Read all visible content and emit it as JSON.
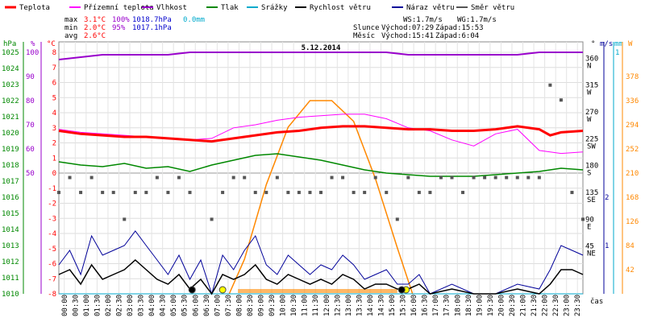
{
  "legend": [
    {
      "label": "Teplota",
      "color": "#ff0000"
    },
    {
      "label": "Přízemní teplota",
      "color": "#ff00ff"
    },
    {
      "label": "Vlhkost",
      "color": "#9900cc"
    },
    {
      "label": "Tlak",
      "color": "#008800"
    },
    {
      "label": "Srážky",
      "color": "#00aacc"
    },
    {
      "label": "Rychlost větru",
      "color": "#000000"
    },
    {
      "label": "Náraz větru",
      "color": "#000099"
    },
    {
      "label": "Směr větru",
      "color": "#555555"
    }
  ],
  "stats": {
    "rows": [
      {
        "name": "max",
        "temp": "3.1°C",
        "hum": "100%",
        "press": "1018.7hPa",
        "rain": "0.0mm"
      },
      {
        "name": "min",
        "temp": "2.0°C",
        "hum": "95%",
        "press": "1017.1hPa",
        "rain": ""
      },
      {
        "name": "avg",
        "temp": "2.6°C",
        "hum": "",
        "press": "",
        "rain": ""
      }
    ],
    "ws": "WS:1.7m/s",
    "wg": "WG:1.7m/s",
    "sun_label": "Slunce",
    "sun_rise": "Východ:07:29",
    "sun_set": "Západ:15:53",
    "moon_label": "Měsíc",
    "moon_rise": "Východ:15:41",
    "moon_set": "Západ:6:04",
    "colors": {
      "temp": "#ff0000",
      "hum": "#9900cc",
      "press": "#0000cc",
      "rain": "#00aacc"
    }
  },
  "chart_data": {
    "type": "line",
    "title": "5.12.2014",
    "x_label": "čas",
    "x_ticks": [
      "00:00",
      "00:30",
      "01:00",
      "01:30",
      "02:00",
      "02:30",
      "03:00",
      "03:30",
      "04:00",
      "04:30",
      "05:00",
      "05:30",
      "06:00",
      "06:30",
      "07:00",
      "07:30",
      "08:00",
      "08:30",
      "09:00",
      "09:30",
      "10:00",
      "10:30",
      "11:00",
      "11:30",
      "12:00",
      "12:30",
      "13:00",
      "13:30",
      "14:00",
      "14:30",
      "15:00",
      "15:30",
      "16:00",
      "16:30",
      "17:00",
      "17:30",
      "18:00",
      "18:30",
      "19:00",
      "19:30",
      "20:00",
      "20:30",
      "21:00",
      "21:30",
      "22:00",
      "22:30",
      "23:00",
      "23:30"
    ],
    "axes": {
      "hpa": {
        "label": "hPa",
        "ticks": [
          "1025",
          "1024",
          "1023",
          "1022",
          "1021",
          "1020",
          "1019",
          "1018",
          "1017",
          "1016",
          "1015",
          "1014",
          "1013",
          "1012",
          "1011",
          "1010"
        ],
        "color": "#008800"
      },
      "pct": {
        "label": "%",
        "ticks": [
          "100",
          "90",
          "80",
          "70",
          "60",
          "50"
        ],
        "color": "#9900cc"
      },
      "celsius": {
        "label": "°C",
        "ticks": [
          "8",
          "7",
          "6",
          "5",
          "4",
          "3",
          "2",
          "1",
          "0",
          "-1",
          "-2",
          "-3",
          "-4",
          "-5",
          "-6",
          "-7",
          "-8"
        ],
        "range": [
          -8,
          8
        ],
        "color": "#ff0000"
      },
      "wind_dir": {
        "label": "°",
        "ticks": [
          "360",
          "315",
          "270",
          "225",
          "180",
          "135",
          "90",
          "45"
        ],
        "compass": [
          "N",
          "W",
          "W",
          "SW",
          "S",
          "SE",
          "E",
          "NE"
        ]
      },
      "ms": {
        "label": "m/s",
        "ticks": [
          "2",
          "1"
        ],
        "color": "#000099"
      },
      "mm": {
        "label": "mm",
        "ticks": [
          "1"
        ],
        "color": "#00aacc"
      },
      "wm2": {
        "label": "W",
        "ticks": [
          "378",
          "336",
          "294",
          "252",
          "210",
          "168",
          "126",
          "84",
          "42"
        ],
        "color": "#ff8800"
      }
    },
    "series": {
      "temperature_c": [
        [
          0,
          2.8
        ],
        [
          1,
          2.6
        ],
        [
          2,
          2.5
        ],
        [
          3,
          2.4
        ],
        [
          4,
          2.4
        ],
        [
          5,
          2.3
        ],
        [
          6,
          2.2
        ],
        [
          7,
          2.1
        ],
        [
          8,
          2.3
        ],
        [
          9,
          2.5
        ],
        [
          10,
          2.7
        ],
        [
          11,
          2.8
        ],
        [
          12,
          3.0
        ],
        [
          13,
          3.1
        ],
        [
          14,
          3.1
        ],
        [
          15,
          3.0
        ],
        [
          16,
          2.9
        ],
        [
          17,
          2.9
        ],
        [
          18,
          2.8
        ],
        [
          19,
          2.8
        ],
        [
          20,
          2.9
        ],
        [
          21,
          3.1
        ],
        [
          22,
          2.9
        ],
        [
          22.5,
          2.5
        ],
        [
          23,
          2.7
        ],
        [
          24,
          2.8
        ]
      ],
      "ground_temp_c": [
        [
          0,
          2.9
        ],
        [
          1,
          2.7
        ],
        [
          2,
          2.6
        ],
        [
          3,
          2.5
        ],
        [
          4,
          2.4
        ],
        [
          5,
          2.3
        ],
        [
          6,
          2.2
        ],
        [
          7,
          2.3
        ],
        [
          8,
          3.0
        ],
        [
          9,
          3.2
        ],
        [
          10,
          3.5
        ],
        [
          11,
          3.7
        ],
        [
          12,
          3.8
        ],
        [
          13,
          3.9
        ],
        [
          14,
          3.9
        ],
        [
          15,
          3.6
        ],
        [
          16,
          3.0
        ],
        [
          17,
          2.8
        ],
        [
          18,
          2.2
        ],
        [
          19,
          1.8
        ],
        [
          20,
          2.6
        ],
        [
          21,
          2.9
        ],
        [
          22,
          1.5
        ],
        [
          23,
          1.3
        ],
        [
          24,
          1.4
        ]
      ],
      "humidity_pct": [
        [
          0,
          97
        ],
        [
          1,
          98
        ],
        [
          2,
          99
        ],
        [
          3,
          99
        ],
        [
          4,
          99
        ],
        [
          5,
          99
        ],
        [
          6,
          100
        ],
        [
          7,
          100
        ],
        [
          8,
          100
        ],
        [
          9,
          100
        ],
        [
          10,
          100
        ],
        [
          11,
          100
        ],
        [
          12,
          100
        ],
        [
          13,
          100
        ],
        [
          14,
          100
        ],
        [
          15,
          100
        ],
        [
          16,
          99
        ],
        [
          17,
          99
        ],
        [
          18,
          99
        ],
        [
          19,
          99
        ],
        [
          20,
          99
        ],
        [
          21,
          99
        ],
        [
          22,
          100
        ],
        [
          23,
          100
        ],
        [
          24,
          100
        ]
      ],
      "pressure_hpa": [
        [
          0,
          1018.2
        ],
        [
          1,
          1018.0
        ],
        [
          2,
          1017.9
        ],
        [
          3,
          1018.1
        ],
        [
          4,
          1017.8
        ],
        [
          5,
          1017.9
        ],
        [
          6,
          1017.6
        ],
        [
          7,
          1018.0
        ],
        [
          8,
          1018.3
        ],
        [
          9,
          1018.6
        ],
        [
          10,
          1018.7
        ],
        [
          11,
          1018.5
        ],
        [
          12,
          1018.3
        ],
        [
          13,
          1018.0
        ],
        [
          14,
          1017.7
        ],
        [
          15,
          1017.5
        ],
        [
          16,
          1017.4
        ],
        [
          17,
          1017.3
        ],
        [
          18,
          1017.3
        ],
        [
          19,
          1017.3
        ],
        [
          20,
          1017.4
        ],
        [
          21,
          1017.5
        ],
        [
          22,
          1017.6
        ],
        [
          23,
          1017.8
        ],
        [
          24,
          1017.7
        ]
      ],
      "rain_mm": [
        [
          0,
          0
        ],
        [
          24,
          0
        ]
      ],
      "wind_speed_ms": [
        [
          0,
          0.4
        ],
        [
          0.5,
          0.5
        ],
        [
          1,
          0.2
        ],
        [
          1.5,
          0.6
        ],
        [
          2,
          0.3
        ],
        [
          2.5,
          0.4
        ],
        [
          3,
          0.5
        ],
        [
          3.5,
          0.7
        ],
        [
          4,
          0.5
        ],
        [
          4.5,
          0.3
        ],
        [
          5,
          0.2
        ],
        [
          5.5,
          0.4
        ],
        [
          6,
          0.1
        ],
        [
          6.5,
          0.3
        ],
        [
          7,
          0.0
        ],
        [
          7.5,
          0.4
        ],
        [
          8,
          0.3
        ],
        [
          8.5,
          0.4
        ],
        [
          9,
          0.6
        ],
        [
          9.5,
          0.3
        ],
        [
          10,
          0.2
        ],
        [
          10.5,
          0.4
        ],
        [
          11,
          0.3
        ],
        [
          11.5,
          0.2
        ],
        [
          12,
          0.3
        ],
        [
          12.5,
          0.2
        ],
        [
          13,
          0.4
        ],
        [
          13.5,
          0.3
        ],
        [
          14,
          0.1
        ],
        [
          14.5,
          0.2
        ],
        [
          15,
          0.2
        ],
        [
          15.5,
          0.1
        ],
        [
          16,
          0.1
        ],
        [
          16.5,
          0.2
        ],
        [
          17,
          0.0
        ],
        [
          18,
          0.1
        ],
        [
          19,
          0.0
        ],
        [
          20,
          0.0
        ],
        [
          21,
          0.1
        ],
        [
          22,
          0.0
        ],
        [
          22.5,
          0.2
        ],
        [
          23,
          0.5
        ],
        [
          23.5,
          0.5
        ],
        [
          24,
          0.4
        ]
      ],
      "wind_gust_ms": [
        [
          0,
          0.6
        ],
        [
          0.5,
          0.9
        ],
        [
          1,
          0.4
        ],
        [
          1.5,
          1.2
        ],
        [
          2,
          0.8
        ],
        [
          2.5,
          0.9
        ],
        [
          3,
          1.0
        ],
        [
          3.5,
          1.3
        ],
        [
          4,
          1.0
        ],
        [
          4.5,
          0.7
        ],
        [
          5,
          0.4
        ],
        [
          5.5,
          0.8
        ],
        [
          6,
          0.3
        ],
        [
          6.5,
          0.7
        ],
        [
          7,
          0.0
        ],
        [
          7.5,
          0.8
        ],
        [
          8,
          0.5
        ],
        [
          8.5,
          0.9
        ],
        [
          9,
          1.2
        ],
        [
          9.5,
          0.6
        ],
        [
          10,
          0.4
        ],
        [
          10.5,
          0.8
        ],
        [
          11,
          0.6
        ],
        [
          11.5,
          0.4
        ],
        [
          12,
          0.6
        ],
        [
          12.5,
          0.5
        ],
        [
          13,
          0.8
        ],
        [
          13.5,
          0.6
        ],
        [
          14,
          0.3
        ],
        [
          14.5,
          0.4
        ],
        [
          15,
          0.5
        ],
        [
          15.5,
          0.2
        ],
        [
          16,
          0.2
        ],
        [
          16.5,
          0.4
        ],
        [
          17,
          0.0
        ],
        [
          18,
          0.2
        ],
        [
          19,
          0.0
        ],
        [
          20,
          0.0
        ],
        [
          21,
          0.2
        ],
        [
          22,
          0.1
        ],
        [
          22.5,
          0.5
        ],
        [
          23,
          1.0
        ],
        [
          23.5,
          0.9
        ],
        [
          24,
          0.8
        ]
      ],
      "wind_dir_deg": [
        [
          0,
          135
        ],
        [
          0.5,
          160
        ],
        [
          1,
          135
        ],
        [
          1.5,
          160
        ],
        [
          2,
          135
        ],
        [
          2.5,
          135
        ],
        [
          3,
          90
        ],
        [
          3.5,
          135
        ],
        [
          4,
          135
        ],
        [
          4.5,
          160
        ],
        [
          5,
          135
        ],
        [
          5.5,
          160
        ],
        [
          6,
          135
        ],
        [
          7,
          90
        ],
        [
          7.5,
          135
        ],
        [
          8,
          160
        ],
        [
          8.5,
          160
        ],
        [
          9,
          135
        ],
        [
          9.5,
          135
        ],
        [
          10,
          160
        ],
        [
          10.5,
          135
        ],
        [
          11,
          135
        ],
        [
          11.5,
          135
        ],
        [
          12,
          135
        ],
        [
          12.5,
          160
        ],
        [
          13,
          160
        ],
        [
          13.5,
          135
        ],
        [
          14,
          135
        ],
        [
          14.5,
          160
        ],
        [
          15,
          135
        ],
        [
          15.5,
          90
        ],
        [
          16,
          160
        ],
        [
          16.5,
          135
        ],
        [
          17,
          135
        ],
        [
          17.5,
          160
        ],
        [
          18,
          160
        ],
        [
          18.5,
          135
        ],
        [
          19,
          160
        ],
        [
          19.5,
          160
        ],
        [
          20,
          160
        ],
        [
          20.5,
          160
        ],
        [
          21,
          160
        ],
        [
          21.5,
          160
        ],
        [
          22,
          160
        ],
        [
          22.5,
          315
        ],
        [
          23,
          290
        ],
        [
          23.5,
          135
        ],
        [
          24,
          90
        ]
      ],
      "solar_w": [
        [
          7.8,
          0
        ],
        [
          8.5,
          60
        ],
        [
          9.5,
          190
        ],
        [
          10.5,
          290
        ],
        [
          11.5,
          336
        ],
        [
          12.5,
          336
        ],
        [
          13.5,
          300
        ],
        [
          14.5,
          200
        ],
        [
          15.5,
          80
        ],
        [
          16.2,
          0
        ]
      ]
    },
    "markers": [
      {
        "type": "sunrise",
        "time": 7.5,
        "color": "#ffff00"
      },
      {
        "type": "sunset",
        "time": 15.9,
        "color": "#ffff00"
      },
      {
        "type": "moonrise",
        "time": 15.7,
        "color": "#000000"
      },
      {
        "type": "moonset",
        "time": 6.1,
        "color": "#000000"
      }
    ]
  }
}
